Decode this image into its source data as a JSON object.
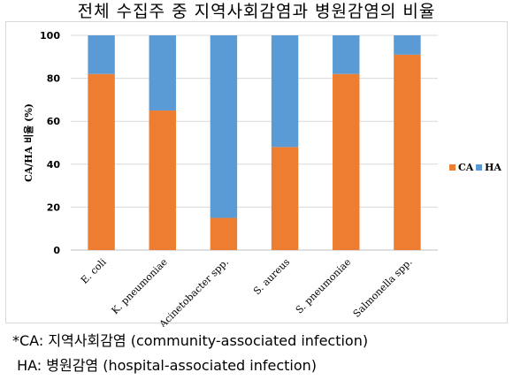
{
  "chart_data": {
    "type": "bar",
    "stacked": true,
    "title": "전체 수집주 중 지역사회감염과 병원감염의 비율",
    "ylabel": "CA/HA 비율 (%)",
    "xlabel": "",
    "ylim": [
      0,
      100
    ],
    "yticks": [
      "0",
      "20",
      "40",
      "60",
      "80",
      "100"
    ],
    "categories": [
      "E. coli",
      "K. pneumoniae",
      "Acinetobacter spp.",
      "S. aureus",
      "S. pneumoniae",
      "Salmonella spp."
    ],
    "series": [
      {
        "name": "CA",
        "color": "#ED7D31",
        "values": [
          82,
          65,
          15,
          48,
          82,
          91
        ]
      },
      {
        "name": "HA",
        "color": "#5B9BD5",
        "values": [
          18,
          35,
          85,
          52,
          18,
          9
        ]
      }
    ],
    "grid": true,
    "legend": "right"
  },
  "footnotes": {
    "ca": "*CA: 지역사회감염 (community-associated infection)",
    "ha": " HA: 병원감염 (hospital-associated infection)"
  }
}
